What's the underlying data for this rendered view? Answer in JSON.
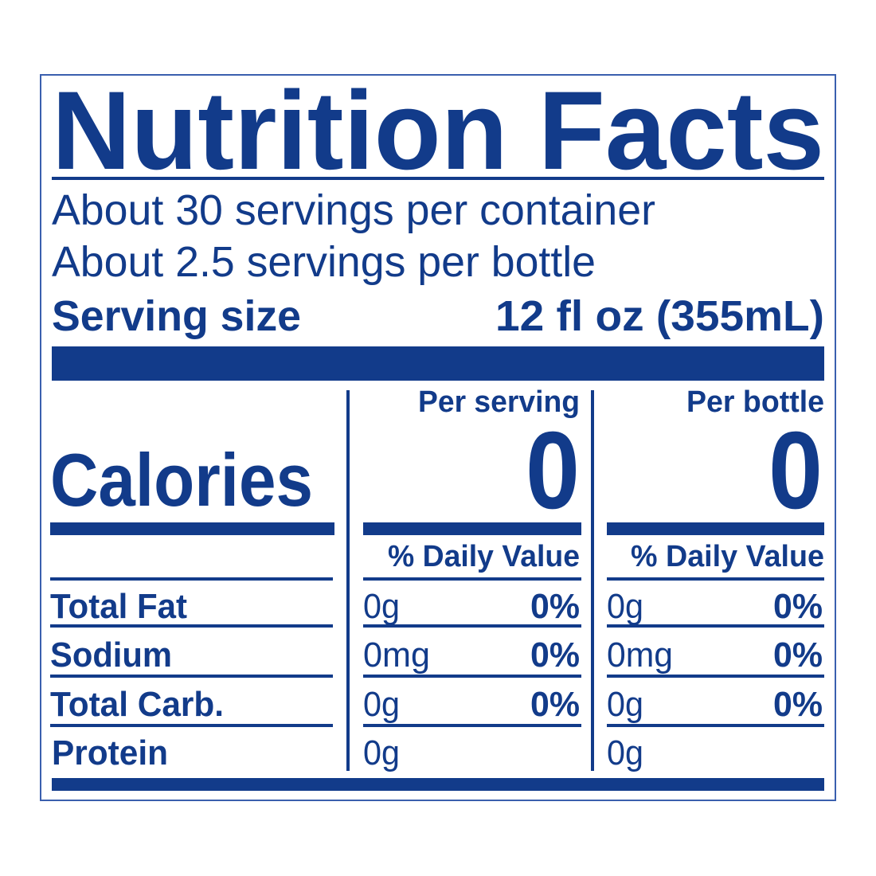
{
  "colors": {
    "ink": "#123b8a",
    "border": "#3a5fae",
    "background": "#ffffff"
  },
  "title": "Nutrition Facts",
  "servings_per_container": "About 30 servings per container",
  "servings_per_bottle": "About 2.5 servings per bottle",
  "serving_size": {
    "label": "Serving size",
    "value": "12 fl oz (355mL)"
  },
  "columns": {
    "per_serving": "Per serving",
    "per_bottle": "Per bottle"
  },
  "calories": {
    "label": "Calories",
    "per_serving": "0",
    "per_bottle": "0"
  },
  "daily_value_header": "% Daily Value",
  "nutrients": [
    {
      "label": "Total Fat",
      "serving_amount": "0g",
      "serving_dv": "0%",
      "bottle_amount": "0g",
      "bottle_dv": "0%"
    },
    {
      "label": "Sodium",
      "serving_amount": "0mg",
      "serving_dv": "0%",
      "bottle_amount": "0mg",
      "bottle_dv": "0%"
    },
    {
      "label": "Total Carb.",
      "serving_amount": "0g",
      "serving_dv": "0%",
      "bottle_amount": "0g",
      "bottle_dv": "0%"
    },
    {
      "label": "Protein",
      "serving_amount": "0g",
      "bottle_amount": "0g"
    }
  ]
}
